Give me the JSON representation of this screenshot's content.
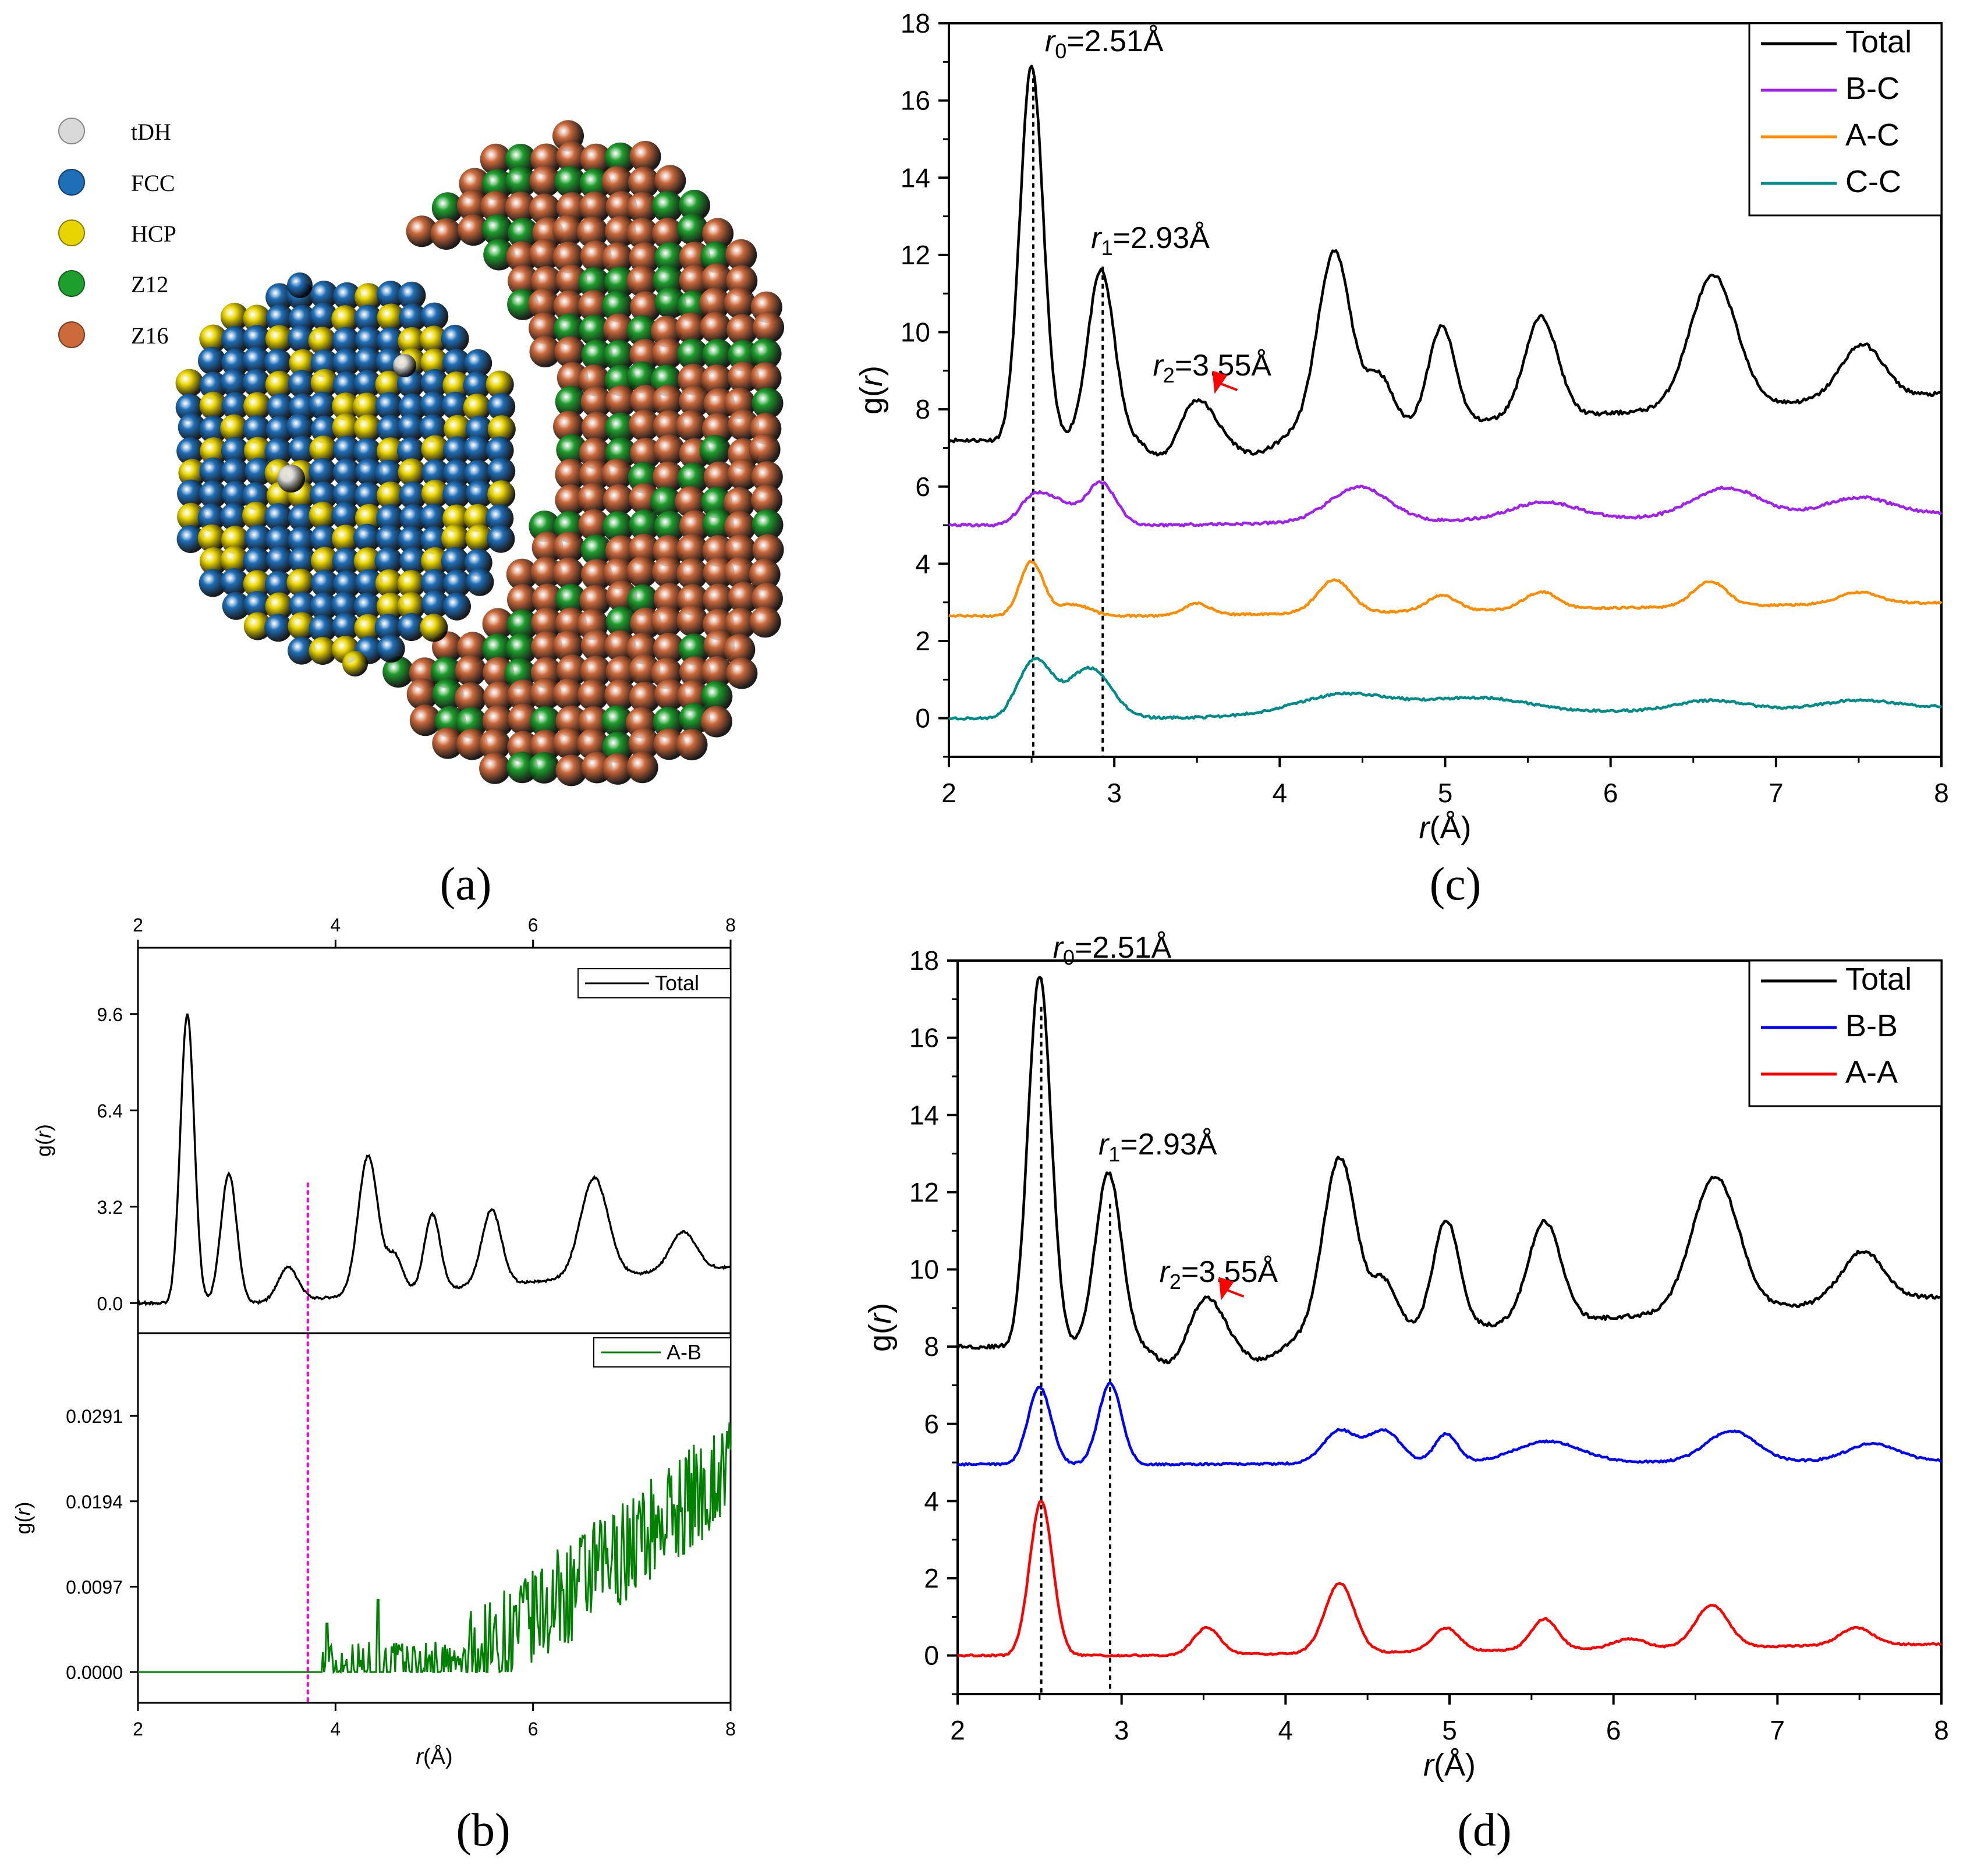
{
  "panel_labels": {
    "a": "(a)",
    "b": "(b)",
    "c": "(c)",
    "d": "(d)"
  },
  "structure_legend": [
    {
      "label": "tDH",
      "color": "#d9d9d9"
    },
    {
      "label": "FCC",
      "color": "#1f6fb8"
    },
    {
      "label": "HCP",
      "color": "#e8d400"
    },
    {
      "label": "Z12",
      "color": "#1e9e2c"
    },
    {
      "label": "Z16",
      "color": "#cc6a3c"
    }
  ],
  "colors": {
    "total": "#000000",
    "bc": "#a020f0",
    "ac": "#ff8c00",
    "cc": "#008b8b",
    "bb": "#0000ff",
    "aa": "#ff0000",
    "ab": "#008000",
    "marker": "#ff00cc",
    "arrow": "#ff0000"
  },
  "chart_data": [
    {
      "id": "c",
      "type": "line",
      "xlabel_r": "r",
      "xlabel_rest": "(Å)",
      "ylabel_pre": "g(",
      "ylabel_r": "r",
      "ylabel_post": ")",
      "xlim": [
        2,
        8
      ],
      "ylim": [
        -1,
        18
      ],
      "xticks": [
        "2",
        "3",
        "4",
        "5",
        "6",
        "7",
        "8"
      ],
      "yticks": [
        "0",
        "2",
        "4",
        "6",
        "8",
        "10",
        "12",
        "14",
        "16",
        "18"
      ],
      "legend": [
        "Total",
        "B-C",
        "A-C",
        "C-C"
      ],
      "annotations": [
        {
          "sym": "r",
          "sub": "0",
          "rest": "=2.51Å",
          "x": 2.51,
          "y": 16.9
        },
        {
          "sym": "r",
          "sub": "1",
          "rest": "=2.93Å",
          "x": 2.93,
          "y": 11.8
        },
        {
          "sym": "r",
          "sub": "2",
          "rest": "=3.55Å",
          "x": 3.55,
          "y": 8.5
        }
      ],
      "vlines": [
        2.51,
        2.93
      ],
      "series": [
        {
          "name": "Total",
          "base": 7.2,
          "tail": 8.4,
          "peaks": [
            [
              2.5,
              9.7,
              0.07
            ],
            [
              2.92,
              4.4,
              0.08
            ],
            [
              3.5,
              1.0,
              0.1
            ],
            [
              4.33,
              4.6,
              0.1
            ],
            [
              4.6,
              1.3,
              0.08
            ],
            [
              4.98,
              2.5,
              0.08
            ],
            [
              5.58,
              2.6,
              0.1
            ],
            [
              6.62,
              3.4,
              0.14
            ],
            [
              7.52,
              1.4,
              0.13
            ]
          ],
          "troughs": [
            [
              3.3,
              0.5,
              0.08
            ],
            [
              3.85,
              0.5,
              0.12
            ]
          ],
          "noise": 0.1
        },
        {
          "name": "B-C",
          "base": 5.0,
          "tail": 5.3,
          "peaks": [
            [
              2.5,
              0.6,
              0.08
            ],
            [
              2.65,
              0.6,
              0.1
            ],
            [
              2.92,
              1.1,
              0.09
            ],
            [
              4.48,
              0.9,
              0.18
            ],
            [
              5.6,
              0.45,
              0.2
            ],
            [
              6.7,
              0.75,
              0.2
            ],
            [
              7.5,
              0.45,
              0.2
            ]
          ],
          "troughs": [],
          "noise": 0.07
        },
        {
          "name": "A-C",
          "base": 2.65,
          "tail": 3.0,
          "peaks": [
            [
              2.5,
              1.4,
              0.07
            ],
            [
              2.75,
              0.3,
              0.1
            ],
            [
              3.5,
              0.3,
              0.08
            ],
            [
              4.33,
              0.85,
              0.1
            ],
            [
              4.98,
              0.4,
              0.09
            ],
            [
              5.58,
              0.45,
              0.1
            ],
            [
              6.6,
              0.65,
              0.1
            ],
            [
              7.5,
              0.3,
              0.12
            ]
          ],
          "troughs": [],
          "noise": 0.05
        },
        {
          "name": "C-C",
          "base": 0.0,
          "tail": 0.3,
          "peaks": [
            [
              2.52,
              1.5,
              0.1
            ],
            [
              2.85,
              1.3,
              0.13
            ],
            [
              4.4,
              0.55,
              0.3
            ],
            [
              5.2,
              0.4,
              0.3
            ],
            [
              6.6,
              0.25,
              0.2
            ],
            [
              7.5,
              0.2,
              0.2
            ]
          ],
          "troughs": [],
          "noise": 0.06
        }
      ]
    },
    {
      "id": "d",
      "type": "line",
      "xlabel_r": "r",
      "xlabel_rest": "(Å)",
      "ylabel_pre": "g(",
      "ylabel_r": "r",
      "ylabel_post": ")",
      "xlim": [
        2,
        8
      ],
      "ylim": [
        -1,
        18
      ],
      "xticks": [
        "2",
        "3",
        "4",
        "5",
        "6",
        "7",
        "8"
      ],
      "yticks": [
        "0",
        "2",
        "4",
        "6",
        "8",
        "10",
        "12",
        "14",
        "16",
        "18"
      ],
      "legend": [
        "Total",
        "B-B",
        "A-A"
      ],
      "annotations": [
        {
          "sym": "r",
          "sub": "0",
          "rest": "=2.51Å",
          "x": 2.51,
          "y": 17.7
        },
        {
          "sym": "r",
          "sub": "1",
          "rest": "=2.93Å",
          "x": 2.93,
          "y": 12.6
        },
        {
          "sym": "r",
          "sub": "2",
          "rest": "=3.55Å",
          "x": 3.55,
          "y": 9.3
        }
      ],
      "vlines": [
        2.51,
        2.93
      ],
      "series": [
        {
          "name": "Total",
          "base": 8.0,
          "tail": 9.3,
          "peaks": [
            [
              2.5,
              9.6,
              0.07
            ],
            [
              2.92,
              4.5,
              0.08
            ],
            [
              3.52,
              1.2,
              0.1
            ],
            [
              4.33,
              4.6,
              0.1
            ],
            [
              4.6,
              1.3,
              0.08
            ],
            [
              4.98,
              2.8,
              0.08
            ],
            [
              5.58,
              2.6,
              0.1
            ],
            [
              6.62,
              3.5,
              0.14
            ],
            [
              7.52,
              1.3,
              0.13
            ]
          ],
          "troughs": [
            [
              3.3,
              0.5,
              0.08
            ],
            [
              3.85,
              0.5,
              0.12
            ]
          ],
          "noise": 0.1
        },
        {
          "name": "B-B",
          "base": 4.95,
          "tail": 5.05,
          "peaks": [
            [
              2.5,
              2.0,
              0.07
            ],
            [
              2.93,
              2.1,
              0.07
            ],
            [
              4.33,
              0.85,
              0.1
            ],
            [
              4.6,
              0.85,
              0.1
            ],
            [
              4.98,
              0.75,
              0.07
            ],
            [
              5.6,
              0.55,
              0.2
            ],
            [
              6.72,
              0.8,
              0.15
            ],
            [
              7.58,
              0.45,
              0.15
            ]
          ],
          "troughs": [],
          "noise": 0.05
        },
        {
          "name": "A-A",
          "base": 0.0,
          "tail": 0.3,
          "peaks": [
            [
              2.51,
              4.0,
              0.07
            ],
            [
              3.52,
              0.7,
              0.08
            ],
            [
              4.33,
              1.8,
              0.09
            ],
            [
              4.98,
              0.6,
              0.08
            ],
            [
              5.58,
              0.8,
              0.08
            ],
            [
              6.1,
              0.25,
              0.1
            ],
            [
              6.6,
              1.1,
              0.1
            ],
            [
              7.48,
              0.45,
              0.1
            ]
          ],
          "troughs": [],
          "noise": 0.04
        }
      ]
    },
    {
      "id": "b",
      "type": "line",
      "xlabel_r": "r",
      "xlabel_rest": "(Å)",
      "ylabel_pre": "g(",
      "ylabel_r": "r",
      "ylabel_post": ")",
      "xlim": [
        2,
        8
      ],
      "xticks": [
        "2",
        "4",
        "6",
        "8"
      ],
      "marker_x": 3.72,
      "top": {
        "ylim": [
          -1.0,
          11.8
        ],
        "yticks": [
          "0.0",
          "3.2",
          "6.4",
          "9.6"
        ],
        "legend": "Total",
        "series": {
          "name": "Total",
          "base": 0.0,
          "tail": 1.2,
          "peaks": [
            [
              2.5,
              9.6,
              0.07
            ],
            [
              2.92,
              4.3,
              0.08
            ],
            [
              3.52,
              1.1,
              0.1
            ],
            [
              4.33,
              4.6,
              0.1
            ],
            [
              4.6,
              1.2,
              0.08
            ],
            [
              4.98,
              2.5,
              0.08
            ],
            [
              5.58,
              2.5,
              0.1
            ],
            [
              6.62,
              3.3,
              0.14
            ],
            [
              7.52,
              1.3,
              0.13
            ]
          ],
          "troughs": [],
          "noise": 0.08
        }
      },
      "bottom": {
        "ylim": [
          -0.0035,
          0.0385
        ],
        "yticks": [
          "0.0000",
          "0.0097",
          "0.0194",
          "0.0291"
        ],
        "legend": "A-B",
        "series": {
          "name": "A-B",
          "onset": 3.85,
          "slope_start": 5.3,
          "end_value": 0.0235
        }
      }
    }
  ]
}
